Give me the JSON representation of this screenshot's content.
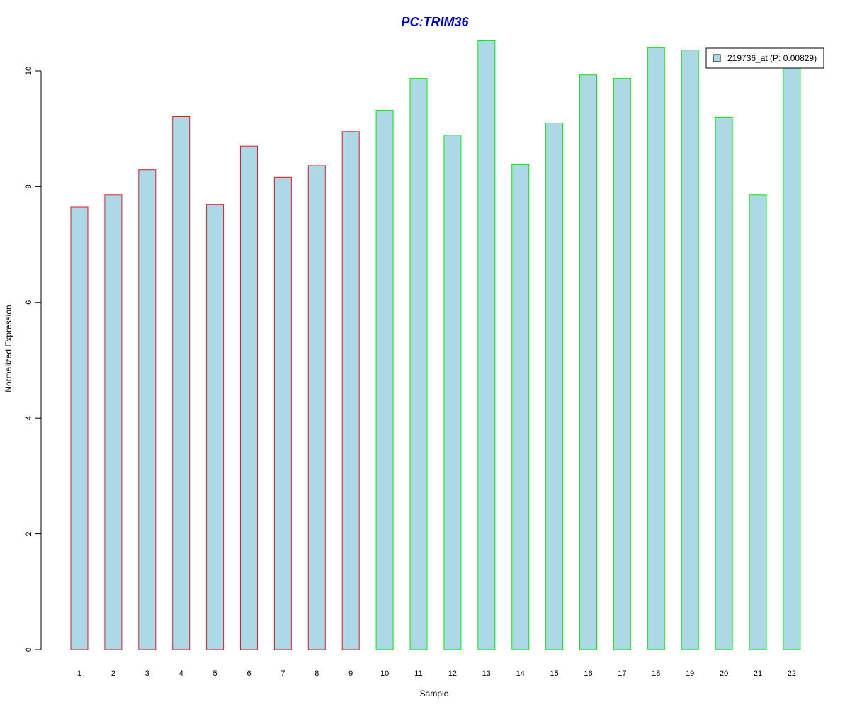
{
  "chart_data": {
    "type": "bar",
    "title": "PC:TRIM36",
    "xlabel": "Sample",
    "ylabel": "Normalized Expression",
    "categories": [
      "1",
      "2",
      "3",
      "4",
      "5",
      "6",
      "7",
      "8",
      "9",
      "10",
      "11",
      "12",
      "13",
      "14",
      "15",
      "16",
      "17",
      "18",
      "19",
      "20",
      "21",
      "22"
    ],
    "series": [
      {
        "name": "219736_at (P: 0.00829)",
        "values": [
          7.65,
          7.86,
          8.29,
          9.21,
          7.69,
          8.7,
          8.16,
          8.36,
          8.95,
          9.32,
          9.87,
          8.89,
          10.52,
          8.38,
          9.1,
          9.93,
          9.87,
          10.4,
          10.36,
          9.2,
          7.86,
          10.2
        ]
      }
    ],
    "groups": [
      {
        "samples": [
          1,
          2,
          3,
          4,
          5,
          6,
          7,
          8,
          9
        ],
        "border_color": "#e31a1c"
      },
      {
        "samples": [
          10,
          11,
          12,
          13,
          14,
          15,
          16,
          17,
          18,
          19,
          20,
          21,
          22
        ],
        "border_color": "#00ee00"
      }
    ],
    "bar_fill": "#add8e6",
    "title_color": "#0000cd",
    "ylim": [
      0,
      10.5
    ],
    "yticks": [
      0,
      2,
      4,
      6,
      8,
      10
    ],
    "grid": false,
    "legend_position": "top-right"
  }
}
